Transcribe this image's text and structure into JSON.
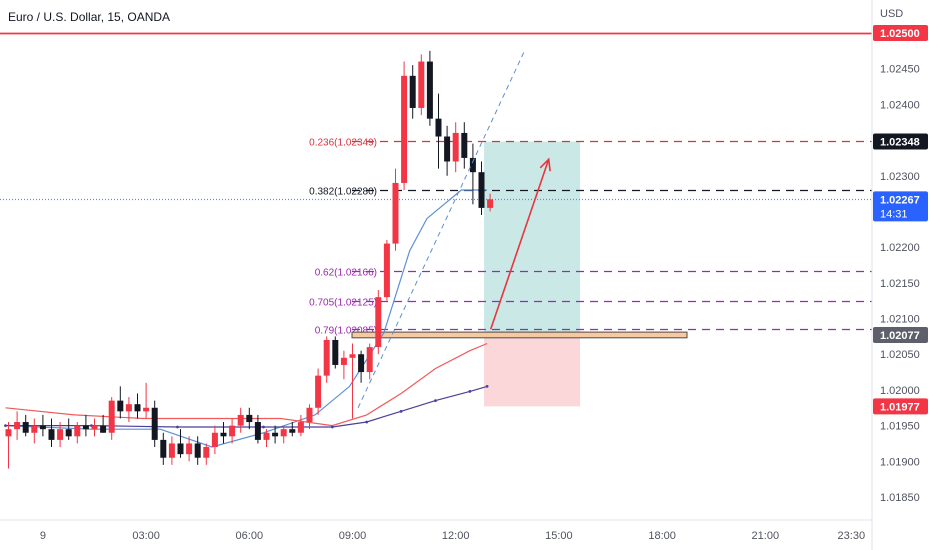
{
  "header": {
    "symbol_title": "Euro / U.S. Dollar, 15, OANDA",
    "currency": "USD"
  },
  "colors": {
    "bull": "#f23645",
    "bear": "#131722",
    "ma_fast": "#5b8fd6",
    "ma_mid": "#f05a5a",
    "ma_slow": "#4a3f9a",
    "resistance": "#f23645",
    "fib_red": "#d4343f",
    "fib_black": "#131722",
    "fib_purple": "#9c27b0",
    "target_zone": "#bfe4e2",
    "stop_zone": "#fbd3d5",
    "arrow": "#e8363f",
    "trendline": "#5b8fd6",
    "axis_text": "#50535e"
  },
  "price_badges": {
    "resistance": "1.02500",
    "fib_236": "1.02348",
    "last": "1.02267",
    "countdown": "14:31",
    "entry": "1.02077",
    "stop": "1.01977"
  },
  "chart_data": {
    "type": "candlestick",
    "title": "Euro / U.S. Dollar, 15, OANDA",
    "timeframe": "15",
    "y_axis_unit": "USD",
    "ylim": [
      1.018,
      1.0257
    ],
    "y_ticks": [
      1.0185,
      1.019,
      1.0195,
      1.02,
      1.0205,
      1.021,
      1.0215,
      1.022,
      1.023,
      1.0235,
      1.024,
      1.0245,
      1.025
    ],
    "y_tick_labels": [
      "1.01850",
      "1.01900",
      "1.01950",
      "1.02000",
      "1.02050",
      "1.02100",
      "1.02150",
      "1.02200",
      "1.02300",
      "1.02350",
      "1.02400",
      "1.02450",
      "1.02500"
    ],
    "x_ticks": [
      {
        "label": "9",
        "bar": 4
      },
      {
        "label": "03:00",
        "bar": 16
      },
      {
        "label": "06:00",
        "bar": 28
      },
      {
        "label": "09:00",
        "bar": 40
      },
      {
        "label": "12:00",
        "bar": 52
      },
      {
        "label": "15:00",
        "bar": 64
      },
      {
        "label": "18:00",
        "bar": 76
      },
      {
        "label": "21:00",
        "bar": 88
      },
      {
        "label": "23:30",
        "bar": 98
      }
    ],
    "candles": [
      {
        "o": 1.01935,
        "h": 1.01955,
        "l": 1.0189,
        "c": 1.01945
      },
      {
        "o": 1.01945,
        "h": 1.0197,
        "l": 1.0193,
        "c": 1.01955
      },
      {
        "o": 1.01955,
        "h": 1.01965,
        "l": 1.01935,
        "c": 1.0194
      },
      {
        "o": 1.0194,
        "h": 1.0196,
        "l": 1.01925,
        "c": 1.0195
      },
      {
        "o": 1.0195,
        "h": 1.01965,
        "l": 1.01935,
        "c": 1.01945
      },
      {
        "o": 1.01945,
        "h": 1.0196,
        "l": 1.0192,
        "c": 1.0193
      },
      {
        "o": 1.0193,
        "h": 1.01955,
        "l": 1.0192,
        "c": 1.01945
      },
      {
        "o": 1.01945,
        "h": 1.0196,
        "l": 1.0193,
        "c": 1.01935
      },
      {
        "o": 1.01935,
        "h": 1.01955,
        "l": 1.01925,
        "c": 1.0195
      },
      {
        "o": 1.0195,
        "h": 1.01965,
        "l": 1.01935,
        "c": 1.01945
      },
      {
        "o": 1.01945,
        "h": 1.0196,
        "l": 1.01935,
        "c": 1.0195
      },
      {
        "o": 1.0195,
        "h": 1.01965,
        "l": 1.0194,
        "c": 1.0194
      },
      {
        "o": 1.0194,
        "h": 1.0199,
        "l": 1.0193,
        "c": 1.01985
      },
      {
        "o": 1.01985,
        "h": 1.02005,
        "l": 1.0196,
        "c": 1.0197
      },
      {
        "o": 1.0197,
        "h": 1.0199,
        "l": 1.01955,
        "c": 1.0198
      },
      {
        "o": 1.0198,
        "h": 1.01995,
        "l": 1.0196,
        "c": 1.0197
      },
      {
        "o": 1.0197,
        "h": 1.0201,
        "l": 1.0196,
        "c": 1.01975
      },
      {
        "o": 1.01975,
        "h": 1.01985,
        "l": 1.0192,
        "c": 1.0193
      },
      {
        "o": 1.0193,
        "h": 1.0194,
        "l": 1.01895,
        "c": 1.01905
      },
      {
        "o": 1.01905,
        "h": 1.01935,
        "l": 1.01895,
        "c": 1.01925
      },
      {
        "o": 1.01925,
        "h": 1.01945,
        "l": 1.01905,
        "c": 1.0191
      },
      {
        "o": 1.0191,
        "h": 1.01935,
        "l": 1.019,
        "c": 1.01925
      },
      {
        "o": 1.01925,
        "h": 1.01935,
        "l": 1.01895,
        "c": 1.01905
      },
      {
        "o": 1.01905,
        "h": 1.01925,
        "l": 1.01895,
        "c": 1.0192
      },
      {
        "o": 1.0192,
        "h": 1.0195,
        "l": 1.0191,
        "c": 1.0194
      },
      {
        "o": 1.0194,
        "h": 1.01955,
        "l": 1.01925,
        "c": 1.01935
      },
      {
        "o": 1.01935,
        "h": 1.0196,
        "l": 1.01925,
        "c": 1.0195
      },
      {
        "o": 1.0195,
        "h": 1.01975,
        "l": 1.0194,
        "c": 1.01965
      },
      {
        "o": 1.01965,
        "h": 1.01975,
        "l": 1.01945,
        "c": 1.01955
      },
      {
        "o": 1.01955,
        "h": 1.01965,
        "l": 1.01925,
        "c": 1.0193
      },
      {
        "o": 1.0193,
        "h": 1.01945,
        "l": 1.0192,
        "c": 1.0194
      },
      {
        "o": 1.0194,
        "h": 1.0195,
        "l": 1.01925,
        "c": 1.01935
      },
      {
        "o": 1.01935,
        "h": 1.0195,
        "l": 1.01925,
        "c": 1.01945
      },
      {
        "o": 1.01945,
        "h": 1.01955,
        "l": 1.01935,
        "c": 1.0194
      },
      {
        "o": 1.0194,
        "h": 1.01965,
        "l": 1.01935,
        "c": 1.01955
      },
      {
        "o": 1.01955,
        "h": 1.0198,
        "l": 1.01945,
        "c": 1.01975
      },
      {
        "o": 1.01975,
        "h": 1.0203,
        "l": 1.01965,
        "c": 1.0202
      },
      {
        "o": 1.0202,
        "h": 1.02075,
        "l": 1.0201,
        "c": 1.0207
      },
      {
        "o": 1.0207,
        "h": 1.02075,
        "l": 1.0203,
        "c": 1.02035
      },
      {
        "o": 1.02035,
        "h": 1.02055,
        "l": 1.02015,
        "c": 1.02045
      },
      {
        "o": 1.02045,
        "h": 1.02065,
        "l": 1.0196,
        "c": 1.0205
      },
      {
        "o": 1.0205,
        "h": 1.02055,
        "l": 1.0201,
        "c": 1.02025
      },
      {
        "o": 1.02025,
        "h": 1.02065,
        "l": 1.02015,
        "c": 1.0206
      },
      {
        "o": 1.0206,
        "h": 1.0214,
        "l": 1.0205,
        "c": 1.0213
      },
      {
        "o": 1.0213,
        "h": 1.0221,
        "l": 1.02125,
        "c": 1.02205
      },
      {
        "o": 1.02205,
        "h": 1.0231,
        "l": 1.02195,
        "c": 1.0229
      },
      {
        "o": 1.0229,
        "h": 1.0246,
        "l": 1.0228,
        "c": 1.0244
      },
      {
        "o": 1.0244,
        "h": 1.02455,
        "l": 1.0238,
        "c": 1.02395
      },
      {
        "o": 1.02395,
        "h": 1.0247,
        "l": 1.02385,
        "c": 1.0246
      },
      {
        "o": 1.0246,
        "h": 1.02475,
        "l": 1.0237,
        "c": 1.0238
      },
      {
        "o": 1.0238,
        "h": 1.02415,
        "l": 1.0231,
        "c": 1.02355
      },
      {
        "o": 1.02355,
        "h": 1.0237,
        "l": 1.023,
        "c": 1.0232
      },
      {
        "o": 1.0232,
        "h": 1.02375,
        "l": 1.02305,
        "c": 1.0236
      },
      {
        "o": 1.0236,
        "h": 1.02375,
        "l": 1.0231,
        "c": 1.02325
      },
      {
        "o": 1.02325,
        "h": 1.02345,
        "l": 1.0226,
        "c": 1.02305
      },
      {
        "o": 1.02305,
        "h": 1.0232,
        "l": 1.02245,
        "c": 1.02255
      },
      {
        "o": 1.02255,
        "h": 1.02275,
        "l": 1.0225,
        "c": 1.02267
      }
    ],
    "moving_averages": [
      {
        "color": "ma_fast",
        "values": [
          [
            0,
            1.0195
          ],
          [
            10,
            1.01945
          ],
          [
            18,
            1.01945
          ],
          [
            24,
            1.0192
          ],
          [
            30,
            1.0194
          ],
          [
            36,
            1.01965
          ],
          [
            40,
            1.02005
          ],
          [
            44,
            1.0208
          ],
          [
            47,
            1.02195
          ],
          [
            49,
            1.0224
          ],
          [
            53,
            1.0228
          ],
          [
            56,
            1.0228
          ]
        ]
      },
      {
        "color": "ma_mid",
        "values": [
          [
            0,
            1.01975
          ],
          [
            8,
            1.01965
          ],
          [
            16,
            1.0196
          ],
          [
            24,
            1.0196
          ],
          [
            32,
            1.0196
          ],
          [
            38,
            1.0195
          ],
          [
            42,
            1.01965
          ],
          [
            46,
            1.01995
          ],
          [
            50,
            1.0203
          ],
          [
            54,
            1.02055
          ],
          [
            56,
            1.02065
          ]
        ]
      },
      {
        "color": "ma_slow",
        "values": [
          [
            0,
            1.0195
          ],
          [
            10,
            1.0195
          ],
          [
            20,
            1.01948
          ],
          [
            30,
            1.01948
          ],
          [
            38,
            1.01948
          ],
          [
            42,
            1.01955
          ],
          [
            46,
            1.0197
          ],
          [
            50,
            1.01985
          ],
          [
            54,
            1.01998
          ],
          [
            56,
            1.02005
          ]
        ]
      }
    ],
    "horizontal_levels": [
      {
        "price": 1.025,
        "style": "solid",
        "color": "resistance"
      },
      {
        "price": 1.02349,
        "style": "dashed",
        "color": "fib_red",
        "label": "0.236(1.02349)"
      },
      {
        "price": 1.0228,
        "style": "dashed",
        "color": "fib_black",
        "label": "0.382(1.02280)"
      },
      {
        "price": 1.02166,
        "style": "dashed",
        "color": "fib_purple",
        "label": "0.62(1.02166)"
      },
      {
        "price": 1.02125,
        "style": "dashed",
        "color": "fib_purple",
        "label": "0.705(1.02125)"
      },
      {
        "price": 1.02085,
        "style": "dashed",
        "color": "fib_purple",
        "label": "0.79(1.02085)"
      },
      {
        "price": 1.02267,
        "style": "dotted",
        "color": "ma_fast"
      }
    ],
    "position": {
      "entry": 1.02077,
      "target": 1.02348,
      "stop": 1.01977,
      "start_bar": 56,
      "end_bar": 66
    },
    "entry_box": {
      "price_top": 1.02081,
      "price_bottom": 1.02073,
      "start_bar": 38,
      "end_bar": 72
    },
    "trendline": {
      "from": [
        41,
        1.01975
      ],
      "to": [
        60,
        1.02475
      ]
    },
    "arrow": {
      "from": [
        57,
        1.02085
      ],
      "to": [
        62,
        1.0234
      ]
    }
  }
}
